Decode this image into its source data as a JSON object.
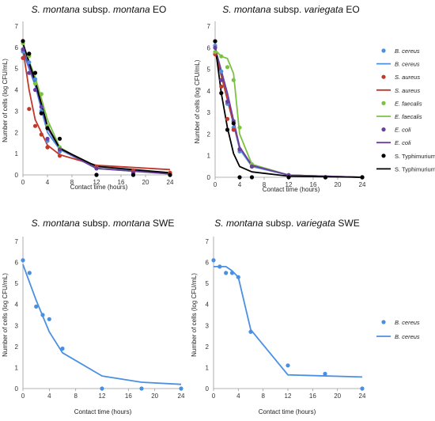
{
  "chart_data": [
    {
      "type": "scatter",
      "title_italic": "S. montana",
      "title_mid": " subsp. ",
      "title_italic2": "montana",
      "title_suffix": " EO",
      "xlabel": "Contact time (hours)",
      "ylabel": "Number of cells (log CFU/mL)",
      "xlim": [
        0,
        24
      ],
      "ylim": [
        0,
        7
      ],
      "xticks": [
        0,
        4,
        8,
        12,
        16,
        20,
        24
      ],
      "yticks": [
        0,
        1,
        2,
        3,
        4,
        5,
        6,
        7
      ],
      "series": [
        {
          "key": "bc",
          "color": "#4a90e2",
          "x": [
            0,
            1,
            2,
            3,
            4,
            6,
            12,
            18,
            24
          ],
          "y": [
            5.8,
            5.3,
            4.5,
            3.0,
            1.6,
            1.1,
            0.0,
            0.0,
            0.0
          ],
          "fit": [
            [
              0,
              5.8
            ],
            [
              2,
              4.2
            ],
            [
              4,
              2.0
            ],
            [
              6,
              1.2
            ],
            [
              12,
              0.3
            ],
            [
              24,
              0.1
            ]
          ]
        },
        {
          "key": "sa",
          "color": "#c0392b",
          "x": [
            0,
            1,
            2,
            3,
            4,
            6,
            12,
            18,
            24
          ],
          "y": [
            5.5,
            3.1,
            2.3,
            1.9,
            1.3,
            0.9,
            0.4,
            0.2,
            0.1
          ],
          "fit": [
            [
              0,
              5.9
            ],
            [
              1,
              4.0
            ],
            [
              2,
              2.6
            ],
            [
              4,
              1.4
            ],
            [
              6,
              0.95
            ],
            [
              12,
              0.45
            ],
            [
              24,
              0.25
            ]
          ]
        },
        {
          "key": "ef",
          "color": "#7cc242",
          "x": [
            0,
            1,
            2,
            3,
            4,
            6,
            12,
            18,
            24
          ],
          "y": [
            6.2,
            5.6,
            4.3,
            3.8,
            2.3,
            1.3,
            0.3,
            0.1,
            0.0
          ],
          "fit": [
            [
              0,
              6.1
            ],
            [
              2,
              4.6
            ],
            [
              4,
              2.6
            ],
            [
              6,
              1.3
            ],
            [
              12,
              0.3
            ],
            [
              24,
              0.05
            ]
          ]
        },
        {
          "key": "ec",
          "color": "#6a3fa0",
          "x": [
            0,
            1,
            2,
            3,
            4,
            6,
            12,
            18,
            24
          ],
          "y": [
            5.9,
            4.8,
            4.0,
            3.2,
            1.7,
            1.2,
            0.3,
            0.1,
            0.0
          ],
          "fit": [
            [
              0,
              5.9
            ],
            [
              2,
              4.3
            ],
            [
              4,
              2.2
            ],
            [
              6,
              1.25
            ],
            [
              12,
              0.3
            ],
            [
              24,
              0.05
            ]
          ]
        },
        {
          "key": "st",
          "color": "#000000",
          "x": [
            0,
            1,
            2,
            3,
            4,
            6,
            12,
            18,
            24
          ],
          "y": [
            6.3,
            5.7,
            4.8,
            2.9,
            2.2,
            1.7,
            0.0,
            0.0,
            0.0
          ],
          "fit": [
            [
              0,
              6.2
            ],
            [
              2,
              4.4
            ],
            [
              4,
              2.3
            ],
            [
              6,
              1.25
            ],
            [
              12,
              0.4
            ],
            [
              24,
              0.1
            ]
          ]
        }
      ]
    },
    {
      "type": "scatter",
      "title_italic": "S. montana",
      "title_mid": " subsp. ",
      "title_italic2": "variegata",
      "title_suffix": " EO",
      "xlabel": "Contact time (hours)",
      "ylabel": "Number of cells (log CFU/mL)",
      "xlim": [
        0,
        24
      ],
      "ylim": [
        0,
        7
      ],
      "xticks": [
        0,
        4,
        8,
        12,
        16,
        20,
        24
      ],
      "yticks": [
        0,
        1,
        2,
        3,
        4,
        5,
        6,
        7
      ],
      "series": [
        {
          "key": "bc",
          "color": "#4a90e2",
          "x": [
            0,
            1,
            2,
            3,
            4,
            6,
            12,
            18,
            24
          ],
          "y": [
            6.1,
            4.9,
            3.4,
            2.3,
            1.2,
            0.5,
            0.1,
            0.0,
            0.0
          ],
          "fit": [
            [
              0,
              6.0
            ],
            [
              2,
              3.6
            ],
            [
              4,
              1.3
            ],
            [
              6,
              0.5
            ],
            [
              12,
              0.1
            ],
            [
              24,
              0.0
            ]
          ]
        },
        {
          "key": "sa",
          "color": "#c0392b",
          "x": [
            0,
            1,
            2,
            3,
            4,
            6,
            12,
            18,
            24
          ],
          "y": [
            5.7,
            4.2,
            2.7,
            2.2,
            1.3,
            0.5,
            0.1,
            0.0,
            0.0
          ],
          "fit": [
            [
              0,
              5.8
            ],
            [
              2,
              3.6
            ],
            [
              4,
              1.4
            ],
            [
              6,
              0.55
            ],
            [
              12,
              0.1
            ],
            [
              24,
              0.0
            ]
          ]
        },
        {
          "key": "ef",
          "color": "#7cc242",
          "x": [
            0,
            1,
            2,
            3,
            4,
            6,
            12,
            18,
            24
          ],
          "y": [
            5.8,
            5.6,
            5.1,
            4.5,
            2.3,
            0.6,
            0.1,
            0.0,
            0.0
          ],
          "fit": [
            [
              0,
              5.9
            ],
            [
              1,
              5.6
            ],
            [
              2,
              5.5
            ],
            [
              3,
              4.8
            ],
            [
              4,
              2.0
            ],
            [
              6,
              0.6
            ],
            [
              12,
              0.1
            ],
            [
              24,
              0.0
            ]
          ]
        },
        {
          "key": "ec",
          "color": "#6a3fa0",
          "x": [
            0,
            1,
            2,
            3,
            4,
            6,
            12,
            18,
            24
          ],
          "y": [
            6.0,
            4.5,
            3.5,
            2.6,
            1.3,
            0.5,
            0.1,
            0.0,
            0.0
          ],
          "fit": [
            [
              0,
              6.0
            ],
            [
              2,
              3.9
            ],
            [
              4,
              1.4
            ],
            [
              6,
              0.55
            ],
            [
              12,
              0.1
            ],
            [
              24,
              0.0
            ]
          ]
        },
        {
          "key": "st",
          "color": "#000000",
          "x": [
            0,
            1,
            2,
            3,
            4,
            6,
            12,
            18,
            24
          ],
          "y": [
            6.3,
            3.9,
            2.2,
            2.5,
            0.0,
            0.0,
            0.0,
            0.0,
            0.0
          ],
          "fit": [
            [
              0,
              6.1
            ],
            [
              1,
              3.9
            ],
            [
              2,
              2.3
            ],
            [
              3,
              1.1
            ],
            [
              4,
              0.5
            ],
            [
              6,
              0.25
            ],
            [
              12,
              0.05
            ],
            [
              24,
              0.0
            ]
          ]
        }
      ],
      "legend": {
        "placement": "right",
        "entries": [
          {
            "key": "bc",
            "kind": "marker",
            "label": "B. cereus",
            "italic": true
          },
          {
            "key": "bc",
            "kind": "line",
            "label": "B. cereus",
            "italic": true
          },
          {
            "key": "sa",
            "kind": "marker",
            "label": "S. aureus",
            "italic": true
          },
          {
            "key": "sa",
            "kind": "line",
            "label": "S. aureus",
            "italic": true
          },
          {
            "key": "ef",
            "kind": "marker",
            "label": "E. faecalis",
            "italic": true
          },
          {
            "key": "ef",
            "kind": "line",
            "label": "E. faecalis",
            "italic": true
          },
          {
            "key": "ec",
            "kind": "marker",
            "label": "E. coli",
            "italic": true
          },
          {
            "key": "ec",
            "kind": "line",
            "label": "E. coli",
            "italic": true
          },
          {
            "key": "st",
            "kind": "marker",
            "label": "S. Typhimurium",
            "italic": false
          },
          {
            "key": "st",
            "kind": "line",
            "label": "S. Typhimurium",
            "italic": false
          }
        ]
      }
    },
    {
      "type": "scatter",
      "title_italic": "S. montana",
      "title_mid": " subsp. ",
      "title_italic2": "montana",
      "title_suffix": " SWE",
      "xlabel": "Contact time (hours)",
      "ylabel": "Number of cells (log CFU/mL)",
      "xlim": [
        0,
        24
      ],
      "ylim": [
        0,
        7
      ],
      "xticks": [
        0,
        4,
        8,
        12,
        16,
        20,
        24
      ],
      "yticks": [
        0,
        1,
        2,
        3,
        4,
        5,
        6,
        7
      ],
      "series": [
        {
          "key": "bc",
          "color": "#4a90e2",
          "x": [
            0,
            1,
            2,
            3,
            4,
            6,
            12,
            18,
            24
          ],
          "y": [
            6.1,
            5.5,
            3.9,
            3.5,
            3.3,
            1.9,
            0.0,
            0.0,
            0.0
          ],
          "fit": [
            [
              0,
              5.9
            ],
            [
              2,
              4.2
            ],
            [
              4,
              2.7
            ],
            [
              6,
              1.7
            ],
            [
              12,
              0.6
            ],
            [
              18,
              0.3
            ],
            [
              24,
              0.2
            ]
          ]
        }
      ]
    },
    {
      "type": "scatter",
      "title_italic": "S. montana",
      "title_mid": " subsp. ",
      "title_italic2": "variegata",
      "title_suffix": " SWE",
      "xlabel": "Contact time (hours)",
      "ylabel": "Number of cells (log CFU/mL)",
      "xlim": [
        0,
        24
      ],
      "ylim": [
        0,
        7
      ],
      "xticks": [
        0,
        4,
        8,
        12,
        16,
        20,
        24
      ],
      "yticks": [
        0,
        1,
        2,
        3,
        4,
        5,
        6,
        7
      ],
      "series": [
        {
          "key": "bc",
          "color": "#4a90e2",
          "x": [
            0,
            1,
            2,
            3,
            4,
            6,
            12,
            18,
            24
          ],
          "y": [
            6.1,
            5.8,
            5.5,
            5.5,
            5.3,
            2.7,
            1.1,
            0.7,
            0.0
          ],
          "fit": [
            [
              0,
              5.8
            ],
            [
              2,
              5.8
            ],
            [
              3,
              5.6
            ],
            [
              4,
              5.3
            ],
            [
              6,
              2.8
            ],
            [
              12,
              0.65
            ],
            [
              24,
              0.55
            ]
          ]
        }
      ],
      "legend": {
        "placement": "right",
        "entries": [
          {
            "key": "bc",
            "kind": "marker",
            "label": "B. cereus",
            "italic": true
          },
          {
            "key": "bc",
            "kind": "line",
            "label": "B. cereus",
            "italic": true
          }
        ]
      }
    }
  ]
}
